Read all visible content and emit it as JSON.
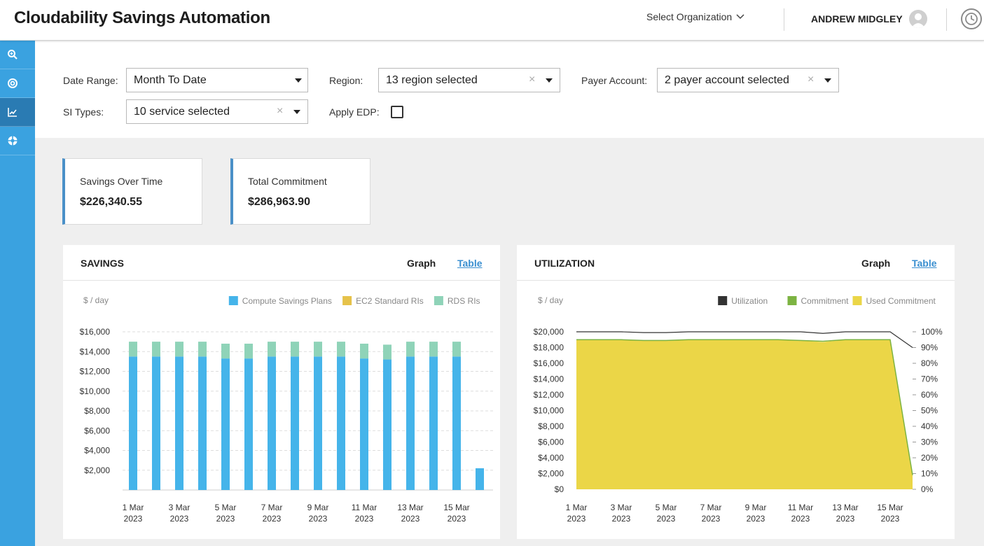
{
  "header": {
    "title": "Cloudability Savings Automation",
    "org_select": "Select Organization",
    "user_name": "ANDREW MIDGLEY"
  },
  "sidebar": {
    "items": [
      {
        "icon": "search-zoom-icon"
      },
      {
        "icon": "target-icon"
      },
      {
        "icon": "line-chart-icon",
        "active": true
      },
      {
        "icon": "lifebuoy-icon"
      }
    ]
  },
  "filters": {
    "date_range_label": "Date Range:",
    "date_range_value": "Month To Date",
    "region_label": "Region:",
    "region_value": "13 region selected",
    "payer_label": "Payer Account:",
    "payer_value": "2 payer account selected",
    "si_types_label": "SI Types:",
    "si_types_value": "10 service selected",
    "apply_edp_label": "Apply EDP:",
    "apply_edp_checked": false,
    "clear_glyph": "×"
  },
  "kpis": [
    {
      "label": "Savings Over Time",
      "value": "$226,340.55"
    },
    {
      "label": "Total Commitment",
      "value": "$286,963.90"
    }
  ],
  "savings_panel": {
    "title": "SAVINGS",
    "graph_tab": "Graph",
    "table_tab": "Table"
  },
  "utilization_panel": {
    "title": "UTILIZATION",
    "graph_tab": "Graph",
    "table_tab": "Table"
  },
  "colors": {
    "brand_blue": "#3aa2e0",
    "compute_sp": "#45b4ea",
    "ec2_ri": "#e6c24a",
    "rds_ri": "#8fd3b8",
    "utilization": "#333333",
    "commitment": "#7cb342",
    "used_commitment": "#ebd647"
  },
  "chart_data": [
    {
      "type": "bar",
      "stacked": true,
      "ylabel": "$ / day",
      "ylim": [
        0,
        16000
      ],
      "yticks": [
        "$2,000",
        "$4,000",
        "$6,000",
        "$8,000",
        "$10,000",
        "$12,000",
        "$14,000",
        "$16,000"
      ],
      "grid": true,
      "legend_position": "top-right",
      "categories": [
        "1 Mar 2023",
        "2 Mar 2023",
        "3 Mar 2023",
        "4 Mar 2023",
        "5 Mar 2023",
        "6 Mar 2023",
        "7 Mar 2023",
        "8 Mar 2023",
        "9 Mar 2023",
        "10 Mar 2023",
        "11 Mar 2023",
        "12 Mar 2023",
        "13 Mar 2023",
        "14 Mar 2023",
        "15 Mar 2023",
        "16 Mar 2023"
      ],
      "x_tick_labels": [
        {
          "line1": "1 Mar",
          "line2": "2023",
          "index": 0
        },
        {
          "line1": "3 Mar",
          "line2": "2023",
          "index": 2
        },
        {
          "line1": "5 Mar",
          "line2": "2023",
          "index": 4
        },
        {
          "line1": "7 Mar",
          "line2": "2023",
          "index": 6
        },
        {
          "line1": "9 Mar",
          "line2": "2023",
          "index": 8
        },
        {
          "line1": "11 Mar",
          "line2": "2023",
          "index": 10
        },
        {
          "line1": "13 Mar",
          "line2": "2023",
          "index": 12
        },
        {
          "line1": "15 Mar",
          "line2": "2023",
          "index": 14
        }
      ],
      "series": [
        {
          "name": "Compute Savings Plans",
          "color": "#45b4ea",
          "values": [
            13500,
            13500,
            13500,
            13500,
            13300,
            13300,
            13500,
            13500,
            13500,
            13500,
            13300,
            13200,
            13500,
            13500,
            13500,
            2200
          ]
        },
        {
          "name": "EC2 Standard RIs",
          "color": "#e6c24a",
          "values": [
            0,
            0,
            0,
            0,
            0,
            0,
            0,
            0,
            0,
            0,
            0,
            0,
            0,
            0,
            0,
            0
          ]
        },
        {
          "name": "RDS RIs",
          "color": "#8fd3b8",
          "values": [
            1500,
            1500,
            1500,
            1500,
            1500,
            1500,
            1500,
            1500,
            1500,
            1500,
            1500,
            1500,
            1500,
            1500,
            1500,
            0
          ]
        }
      ]
    },
    {
      "type": "area",
      "ylabel": "$ / day",
      "ylim": [
        0,
        20000
      ],
      "y2lim": [
        0,
        100
      ],
      "yticks": [
        "$0",
        "$2,000",
        "$4,000",
        "$6,000",
        "$8,000",
        "$10,000",
        "$12,000",
        "$14,000",
        "$16,000",
        "$18,000",
        "$20,000"
      ],
      "y2ticks": [
        "0%",
        "10%",
        "20%",
        "30%",
        "40%",
        "50%",
        "60%",
        "70%",
        "80%",
        "90%",
        "100%"
      ],
      "grid": false,
      "legend_position": "top-right",
      "x_tick_labels": [
        {
          "line1": "1 Mar",
          "line2": "2023",
          "index": 0
        },
        {
          "line1": "3 Mar",
          "line2": "2023",
          "index": 2
        },
        {
          "line1": "5 Mar",
          "line2": "2023",
          "index": 4
        },
        {
          "line1": "7 Mar",
          "line2": "2023",
          "index": 6
        },
        {
          "line1": "9 Mar",
          "line2": "2023",
          "index": 8
        },
        {
          "line1": "11 Mar",
          "line2": "2023",
          "index": 10
        },
        {
          "line1": "13 Mar",
          "line2": "2023",
          "index": 12
        },
        {
          "line1": "15 Mar",
          "line2": "2023",
          "index": 14
        }
      ],
      "series": [
        {
          "name": "Utilization",
          "color": "#333333",
          "axis": "right",
          "values": [
            100,
            100,
            100,
            99.5,
            99.5,
            100,
            100,
            100,
            100,
            100,
            100,
            99,
            100,
            100,
            100,
            90
          ]
        },
        {
          "name": "Commitment",
          "color": "#7cb342",
          "axis": "left",
          "values": [
            19000,
            19000,
            19000,
            18900,
            18900,
            19000,
            19000,
            19000,
            19000,
            19000,
            18900,
            18800,
            19000,
            19000,
            19000,
            1800
          ]
        },
        {
          "name": "Used Commitment",
          "color": "#ebd647",
          "axis": "left",
          "values": [
            19000,
            19000,
            19000,
            18900,
            18900,
            19000,
            19000,
            19000,
            19000,
            19000,
            18900,
            18700,
            19000,
            19000,
            19000,
            1800
          ]
        }
      ]
    }
  ]
}
